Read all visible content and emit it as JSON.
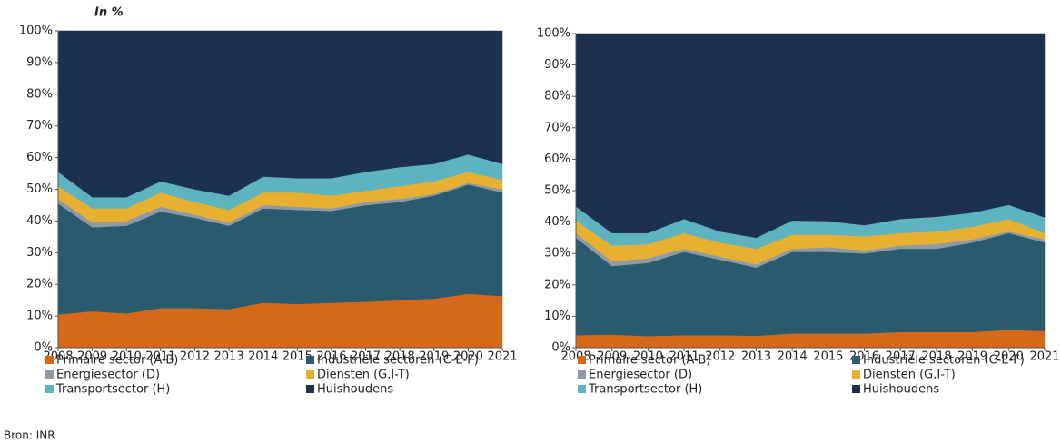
{
  "source": "Bron: INR",
  "chart_data": [
    {
      "type": "stacked_area",
      "y_label": "In %",
      "categories": [
        "2008",
        "2009",
        "2010",
        "2011",
        "2012",
        "2013",
        "2014",
        "2015",
        "2016",
        "2017",
        "2018",
        "2019",
        "2020",
        "2021"
      ],
      "ylim": [
        0,
        100
      ],
      "yticks": [
        {
          "value": 0,
          "label": "0%"
        },
        {
          "value": 10,
          "label": "10%"
        },
        {
          "value": 20,
          "label": "20%"
        },
        {
          "value": 30,
          "label": "30%"
        },
        {
          "value": 40,
          "label": "40%"
        },
        {
          "value": 50,
          "label": "50%"
        },
        {
          "value": 60,
          "label": "60%"
        },
        {
          "value": 70,
          "label": "70%"
        },
        {
          "value": 80,
          "label": "80%"
        },
        {
          "value": 90,
          "label": "90%"
        },
        {
          "value": 100,
          "label": "100%"
        }
      ],
      "series": [
        {
          "name": "Primaire sector (A-B)",
          "color": "#d4691a",
          "values": [
            10.5,
            11.5,
            10.8,
            12.5,
            12.5,
            12.2,
            14.2,
            13.8,
            14.2,
            14.5,
            15,
            15.5,
            17,
            16.3
          ]
        },
        {
          "name": "Industriële sectoren (C-E-F)",
          "color": "#2a5a6e",
          "values": [
            35,
            26.5,
            27.7,
            30.5,
            28.5,
            26.3,
            29.8,
            29.7,
            29,
            30.5,
            31,
            32.5,
            34.5,
            32.7
          ]
        },
        {
          "name": "Energiesector (D)",
          "color": "#8e9aa6",
          "values": [
            1.5,
            1.5,
            1.5,
            1.5,
            1,
            1,
            1,
            1,
            0.8,
            1,
            1,
            0.5,
            0.5,
            1
          ]
        },
        {
          "name": "Diensten (G,I-T)",
          "color": "#e8b030",
          "values": [
            4,
            4.5,
            4,
            4.5,
            4,
            4,
            4,
            4.5,
            4,
            3.5,
            4,
            4,
            3.5,
            3
          ]
        },
        {
          "name": "Transportsector (H)",
          "color": "#5db3c0",
          "values": [
            4.5,
            3.5,
            3.5,
            3.5,
            4,
            4.5,
            5,
            4.5,
            5.5,
            6,
            6,
            5.5,
            5.5,
            5
          ]
        },
        {
          "name": "Huishoudens",
          "color": "#1c3150",
          "values": [
            44.5,
            52.5,
            52.5,
            47.5,
            50,
            52,
            46,
            46.5,
            46.5,
            44.5,
            43,
            42,
            39,
            42
          ]
        }
      ]
    },
    {
      "type": "stacked_area",
      "categories": [
        "2008",
        "2009",
        "2010",
        "2011",
        "2012",
        "2013",
        "2014",
        "2015",
        "2016",
        "2017",
        "2018",
        "2019",
        "2020",
        "2021"
      ],
      "ylim": [
        0,
        100
      ],
      "yticks": [
        {
          "value": 0,
          "label": "0%"
        },
        {
          "value": 10,
          "label": "10%"
        },
        {
          "value": 20,
          "label": "20%"
        },
        {
          "value": 30,
          "label": "30%"
        },
        {
          "value": 40,
          "label": "40%"
        },
        {
          "value": 50,
          "label": "50%"
        },
        {
          "value": 60,
          "label": "60%"
        },
        {
          "value": 70,
          "label": "70%"
        },
        {
          "value": 80,
          "label": "80%"
        },
        {
          "value": 90,
          "label": "90%"
        },
        {
          "value": 100,
          "label": "100%"
        }
      ],
      "series": [
        {
          "name": "Primaire sector (A-B)",
          "color": "#d4691a",
          "values": [
            4,
            4.2,
            3.7,
            4,
            4,
            3.8,
            4.5,
            4.5,
            4.5,
            5,
            5,
            5,
            5.7,
            5.3
          ]
        },
        {
          "name": "Industriële sectoren (C-E-F)",
          "color": "#2a5a6e",
          "values": [
            31,
            21.8,
            23.3,
            26.5,
            24,
            21.7,
            26,
            26,
            25.5,
            26.5,
            26.5,
            28.5,
            30.8,
            28.2
          ]
        },
        {
          "name": "Energiesector (D)",
          "color": "#8e9aa6",
          "values": [
            1.5,
            1.5,
            1.5,
            1,
            1,
            1,
            1,
            1.5,
            1,
            1,
            1.5,
            1,
            0.5,
            1
          ]
        },
        {
          "name": "Diensten (G,I-T)",
          "color": "#e8b030",
          "values": [
            4,
            5,
            4.5,
            5,
            4.5,
            5,
            4.5,
            4,
            4.5,
            4,
            4,
            4,
            4,
            2
          ]
        },
        {
          "name": "Transportsector (H)",
          "color": "#5db3c0",
          "values": [
            4.5,
            4,
            3.5,
            4.5,
            3.5,
            3.5,
            4.5,
            4.3,
            3.5,
            4.5,
            4.7,
            4.5,
            4.5,
            5
          ]
        },
        {
          "name": "Huishoudens",
          "color": "#1c3150",
          "values": [
            55,
            63.5,
            63.5,
            59,
            63,
            65,
            59.5,
            59.7,
            61,
            59,
            58.3,
            57,
            54.5,
            58.5
          ]
        }
      ]
    }
  ]
}
